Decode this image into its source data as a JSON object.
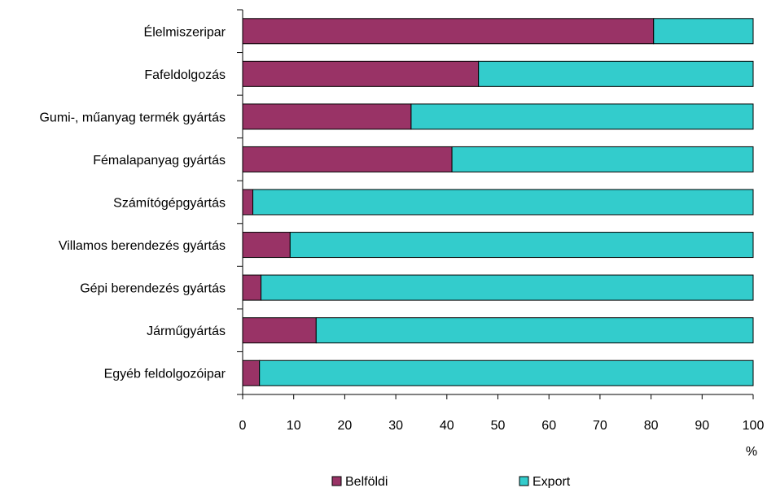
{
  "chart_data": {
    "type": "bar",
    "orientation": "horizontal",
    "stacked": true,
    "percent_stacked": true,
    "categories": [
      "Élelmiszeripar",
      "Fafeldolgozás",
      "Gumi-, műanyag termék gyártás",
      "Fémalapanyag gyártás",
      "Számítógépgyártás",
      "Villamos berendezés gyártás",
      "Gépi berendezés gyártás",
      "Járműgyártás",
      "Egyéb feldolgozóipar"
    ],
    "series": [
      {
        "name": "Belföldi",
        "color": "#993366",
        "values": [
          80.5,
          46.2,
          33.0,
          41.0,
          2.0,
          9.3,
          3.6,
          14.4,
          3.3
        ]
      },
      {
        "name": "Export",
        "color": "#33CCCC",
        "values": [
          19.5,
          53.8,
          67.0,
          59.0,
          98.0,
          90.7,
          96.4,
          85.6,
          96.7
        ]
      }
    ],
    "xlim": [
      0,
      100
    ],
    "xticks": [
      "0",
      "10",
      "20",
      "30",
      "40",
      "50",
      "60",
      "70",
      "80",
      "90",
      "100"
    ],
    "xlabel": "%",
    "ylabel": "",
    "title": "",
    "grid": false,
    "legend_position": "bottom"
  }
}
